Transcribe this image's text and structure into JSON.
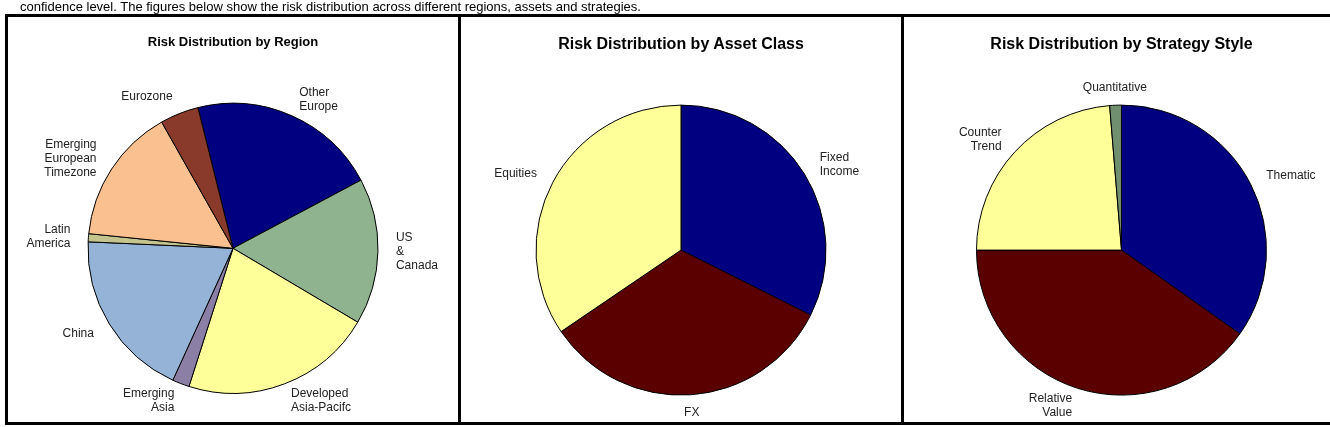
{
  "chart_data": [
    {
      "type": "pie",
      "title": "Risk Distribution by Region",
      "annotations": [
        "confidence level. The figures below show the risk distribution across different regions, assets and strategies."
      ],
      "categories": [
        "Other Europe",
        "US & Canada",
        "Developed Asia-Pacifc",
        "Emerging Asia",
        "China",
        "Latin America",
        "Emerging European Timezone",
        "Eurozone"
      ],
      "values": [
        21.1,
        16.3,
        21.4,
        1.9,
        18.9,
        0.9,
        15.2,
        4.3
      ],
      "colors": [
        "#000080",
        "#8fb38f",
        "#ffff99",
        "#8c7fa6",
        "#95b3d7",
        "#c4c48f",
        "#fac090",
        "#8a3a2a"
      ]
    },
    {
      "type": "pie",
      "title": "Risk Distribution by Asset Class",
      "categories": [
        "Fixed Income",
        "FX",
        "Equities"
      ],
      "values": [
        32.4,
        33.1,
        34.5
      ],
      "colors": [
        "#000080",
        "#5a0000",
        "#ffff99"
      ]
    },
    {
      "type": "pie",
      "title": "Risk Distribution by Strategy Style",
      "categories": [
        "Thematic",
        "Relative Value",
        "Counter Trend",
        "Quantitative"
      ],
      "values": [
        34.8,
        40.2,
        23.7,
        1.3
      ],
      "colors": [
        "#000080",
        "#5a0000",
        "#ffff99",
        "#6f8f6f"
      ]
    }
  ]
}
